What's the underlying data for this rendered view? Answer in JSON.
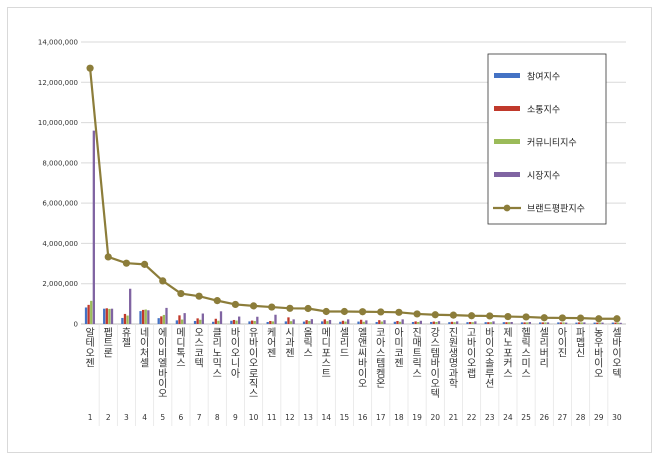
{
  "chart_data": {
    "type": "bar",
    "title": "",
    "xlabel": "",
    "ylabel": "",
    "ylim": [
      0,
      14000000
    ],
    "yticks": [
      "0",
      "2,000,000",
      "4,000,000",
      "6,000,000",
      "8,000,000",
      "10,000,000",
      "12,000,000",
      "14,000,000"
    ],
    "grid": true,
    "legend_position": "right",
    "ranks": [
      "1",
      "2",
      "3",
      "4",
      "5",
      "6",
      "7",
      "8",
      "9",
      "10",
      "11",
      "12",
      "13",
      "14",
      "15",
      "16",
      "17",
      "18",
      "19",
      "20",
      "21",
      "22",
      "23",
      "24",
      "25",
      "26",
      "27",
      "28",
      "29",
      "30"
    ],
    "categories": [
      "알테오젠",
      "펩트론",
      "휴젤",
      "네이처셀",
      "에이비엘바이오",
      "메디톡스",
      "오스코텍",
      "클리노믹스",
      "바이오니아",
      "유바이오로직스",
      "케어젠",
      "시과젠",
      "올릭스",
      "메디포스트",
      "셀리드",
      "엘앤씨바이오",
      "코아스템켐온",
      "아미코젠",
      "진매트릭스",
      "강스템바이오텍",
      "진원생명과학",
      "고바이오랩",
      "바이오솔루션",
      "제노포커스",
      "헬릭스미스",
      "셀리버리",
      "아이진",
      "파멥신",
      "농우바이오",
      "셀바이오텍"
    ],
    "series": [
      {
        "name": "참여지수",
        "type": "bar",
        "color": "#4472c4",
        "values": [
          820000,
          760000,
          300000,
          640000,
          290000,
          180000,
          150000,
          110000,
          160000,
          130000,
          100000,
          130000,
          120000,
          130000,
          110000,
          120000,
          100000,
          110000,
          100000,
          100000,
          90000,
          90000,
          90000,
          90000,
          80000,
          80000,
          80000,
          70000,
          70000,
          70000
        ]
      },
      {
        "name": "소통지수",
        "type": "bar",
        "color": "#c0392b",
        "values": [
          950000,
          780000,
          500000,
          700000,
          380000,
          430000,
          280000,
          260000,
          200000,
          170000,
          150000,
          330000,
          190000,
          230000,
          160000,
          210000,
          190000,
          150000,
          130000,
          120000,
          110000,
          100000,
          90000,
          90000,
          80000,
          80000,
          80000,
          80000,
          70000,
          70000
        ]
      },
      {
        "name": "커뮤니티지수",
        "type": "bar",
        "color": "#9bbb59",
        "values": [
          1150000,
          750000,
          420000,
          720000,
          450000,
          220000,
          210000,
          160000,
          170000,
          150000,
          130000,
          140000,
          150000,
          140000,
          120000,
          110000,
          120000,
          110000,
          100000,
          100000,
          90000,
          90000,
          90000,
          90000,
          80000,
          80000,
          80000,
          80000,
          70000,
          70000
        ]
      },
      {
        "name": "시장지수",
        "type": "bar",
        "color": "#8064a2",
        "values": [
          9600000,
          760000,
          1750000,
          680000,
          800000,
          540000,
          520000,
          630000,
          370000,
          360000,
          460000,
          230000,
          240000,
          200000,
          230000,
          180000,
          190000,
          230000,
          160000,
          140000,
          130000,
          130000,
          130000,
          100000,
          100000,
          80000,
          70000,
          80000,
          70000,
          60000
        ]
      },
      {
        "name": "브랜드평판지수",
        "type": "line",
        "color": "#8c7d3a",
        "values": [
          12700000,
          3330000,
          3020000,
          2960000,
          2140000,
          1510000,
          1380000,
          1160000,
          970000,
          900000,
          840000,
          780000,
          770000,
          620000,
          620000,
          610000,
          600000,
          580000,
          500000,
          460000,
          440000,
          410000,
          400000,
          370000,
          350000,
          310000,
          300000,
          290000,
          260000,
          260000
        ]
      }
    ]
  }
}
